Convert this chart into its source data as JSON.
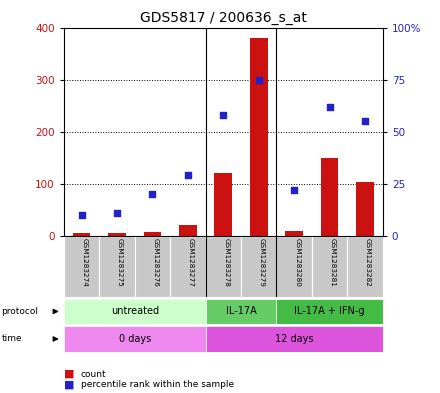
{
  "title": "GDS5817 / 200636_s_at",
  "samples": [
    "GSM1283274",
    "GSM1283275",
    "GSM1283276",
    "GSM1283277",
    "GSM1283278",
    "GSM1283279",
    "GSM1283280",
    "GSM1283281",
    "GSM1283282"
  ],
  "counts": [
    5,
    5,
    8,
    20,
    120,
    380,
    10,
    150,
    103
  ],
  "percentile_ranks": [
    10,
    11,
    20,
    29,
    58,
    75,
    22,
    62,
    55
  ],
  "ylim_left": [
    0,
    400
  ],
  "ylim_right": [
    0,
    100
  ],
  "yticks_left": [
    0,
    100,
    200,
    300,
    400
  ],
  "yticks_right": [
    0,
    25,
    50,
    75,
    100
  ],
  "yticklabels_right": [
    "0",
    "25",
    "50",
    "75",
    "100%"
  ],
  "bar_color": "#cc1111",
  "dot_color": "#2222cc",
  "protocol_labels": [
    "untreated",
    "IL-17A",
    "IL-17A + IFN-g"
  ],
  "protocol_colors": [
    "#ccffcc",
    "#66cc66",
    "#44bb44"
  ],
  "time_labels": [
    "0 days",
    "12 days"
  ],
  "time_color": "#dd55dd",
  "sample_bg_color": "#c8c8c8",
  "grid_color": "#000000",
  "title_fontsize": 10,
  "tick_fontsize": 7.5,
  "label_fontsize": 7.5,
  "separators": [
    3.5,
    5.5
  ]
}
